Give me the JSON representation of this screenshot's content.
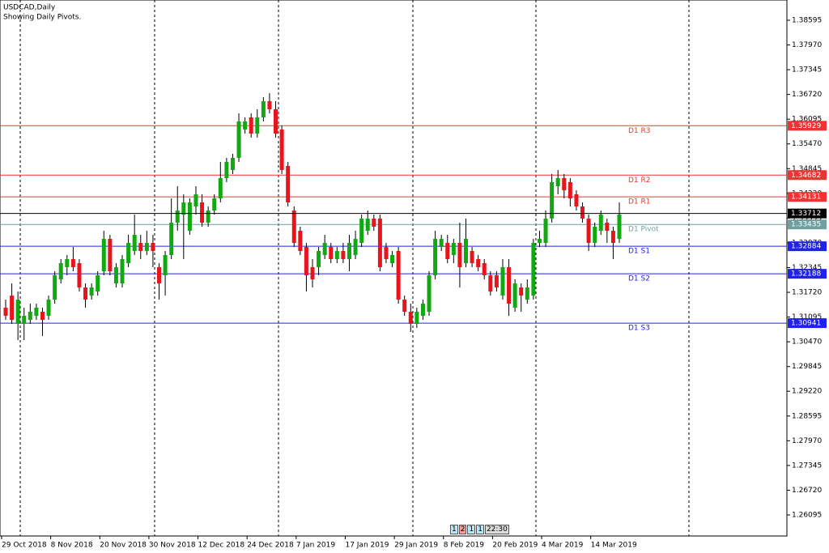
{
  "chart_data": {
    "type": "candlestick",
    "title": "USDCAD,Daily",
    "subtitle": "Showing Daily Pivots.",
    "categories": [
      "29 Oct 2018",
      null,
      null,
      null,
      null,
      null,
      null,
      null,
      "8 Nov 2018",
      null,
      null,
      null,
      null,
      null,
      null,
      null,
      "20 Nov 2018",
      null,
      null,
      null,
      null,
      null,
      null,
      null,
      "30 Nov 2018",
      null,
      null,
      null,
      null,
      null,
      null,
      null,
      "12 Dec 2018",
      null,
      null,
      null,
      null,
      null,
      null,
      null,
      "24 Dec 2018",
      null,
      null,
      null,
      null,
      null,
      null,
      null,
      "7 Jan 2019",
      null,
      null,
      null,
      null,
      null,
      null,
      null,
      "17 Jan 2019",
      null,
      null,
      null,
      null,
      null,
      null,
      null,
      "29 Jan 2019",
      null,
      null,
      null,
      null,
      null,
      null,
      null,
      "8 Feb 2019",
      null,
      null,
      null,
      null,
      null,
      null,
      null,
      "20 Feb 2019",
      null,
      null,
      null,
      null,
      null,
      null,
      null,
      "4 Mar 2019",
      null,
      null,
      null,
      null,
      null,
      null,
      null,
      "14 Mar 2019",
      null,
      null,
      null,
      null
    ],
    "open": [
      1.31332,
      1.31638,
      1.30922,
      1.30922,
      1.31025,
      1.31127,
      1.31229,
      1.31127,
      1.31536,
      1.32048,
      1.32355,
      1.32559,
      1.32457,
      1.31843,
      1.31638,
      1.31741,
      1.32252,
      1.33071,
      1.31945,
      1.31945,
      1.32457,
      1.32764,
      1.32969,
      1.32764,
      1.32969,
      1.32355,
      1.3215,
      1.32662,
      1.3348,
      1.33685,
      1.33276,
      1.3389,
      1.33992,
      1.3348,
      1.33787,
      1.34094,
      1.34606,
      1.34811,
      1.35117,
      1.35834,
      1.3614,
      1.35731,
      1.3614,
      1.3655,
      1.36345,
      1.35834,
      1.34913,
      1.33787,
      1.33276,
      1.32866,
      1.32355,
      1.32355,
      1.32662,
      1.32866,
      1.32559,
      1.32764,
      1.32559,
      1.32662,
      1.32969,
      1.33276,
      1.33583,
      1.33583,
      1.32866,
      1.32457,
      1.32764,
      1.31536,
      1.31229,
      1.30922,
      1.31127,
      1.31229,
      1.3215,
      1.32866,
      1.32969,
      1.32662,
      1.32969,
      1.32457,
      1.32764,
      1.32559,
      1.32457,
      1.3215,
      1.3215,
      1.31638,
      1.32355,
      1.31332,
      1.31843,
      1.31536,
      1.31638,
      1.32969,
      1.32969,
      1.33583,
      1.34401,
      1.34606,
      1.34504,
      1.34197,
      1.3389,
      1.33583,
      1.32969,
      1.33276,
      1.3348,
      1.33276,
      1.33071
    ],
    "high": [
      1.31536,
      1.31945,
      1.31741,
      1.31332,
      1.31434,
      1.31434,
      1.31332,
      1.31638,
      1.32252,
      1.32559,
      1.32662,
      1.32866,
      1.32559,
      1.31945,
      1.31945,
      1.32252,
      1.33276,
      1.33173,
      1.32457,
      1.32662,
      1.33173,
      1.33685,
      1.33173,
      1.33276,
      1.33173,
      1.32457,
      1.32764,
      1.34094,
      1.34401,
      1.34197,
      1.34094,
      1.34401,
      1.34197,
      1.3389,
      1.34197,
      1.35015,
      1.35117,
      1.3522,
      1.36243,
      1.3614,
      1.36243,
      1.36345,
      1.36652,
      1.36754,
      1.3655,
      1.35936,
      1.35015,
      1.3389,
      1.33378,
      1.32969,
      1.32559,
      1.32866,
      1.33173,
      1.32969,
      1.32866,
      1.32969,
      1.33173,
      1.33276,
      1.33685,
      1.33787,
      1.33685,
      1.33685,
      1.32969,
      1.32764,
      1.32866,
      1.31638,
      1.31434,
      1.31332,
      1.31536,
      1.32252,
      1.33276,
      1.33173,
      1.33173,
      1.33071,
      1.3348,
      1.33583,
      1.32866,
      1.32662,
      1.32559,
      1.32252,
      1.32252,
      1.32559,
      1.32559,
      1.32048,
      1.31945,
      1.32048,
      1.33071,
      1.33276,
      1.33787,
      1.34708,
      1.34811,
      1.34708,
      1.34606,
      1.34299,
      1.33992,
      1.33685,
      1.3348,
      1.33787,
      1.33583,
      1.33378,
      1.33992
    ],
    "low": [
      1.31025,
      1.30922,
      1.30513,
      1.30513,
      1.30922,
      1.31025,
      1.30615,
      1.31025,
      1.31434,
      1.31945,
      1.3215,
      1.32252,
      1.31741,
      1.31332,
      1.31536,
      1.31638,
      1.3215,
      1.3215,
      1.31843,
      1.31843,
      1.32355,
      1.32662,
      1.32559,
      1.32662,
      1.32355,
      1.31536,
      1.31638,
      1.32559,
      1.33276,
      1.32559,
      1.33173,
      1.33685,
      1.33378,
      1.33378,
      1.33685,
      1.33992,
      1.34504,
      1.34708,
      1.35015,
      1.35731,
      1.35629,
      1.35629,
      1.36038,
      1.36243,
      1.35629,
      1.34708,
      1.3389,
      1.32866,
      1.32662,
      1.31741,
      1.31843,
      1.3215,
      1.32559,
      1.32457,
      1.32457,
      1.32457,
      1.32252,
      1.32559,
      1.32866,
      1.33173,
      1.33276,
      1.32252,
      1.32457,
      1.32355,
      1.31434,
      1.31127,
      1.30718,
      1.3082,
      1.31025,
      1.31127,
      1.32048,
      1.32764,
      1.32457,
      1.32457,
      1.31843,
      1.32355,
      1.32355,
      1.32252,
      1.32048,
      1.31638,
      1.31741,
      1.31536,
      1.31127,
      1.31229,
      1.31229,
      1.31434,
      1.31536,
      1.32866,
      1.32866,
      1.3348,
      1.34197,
      1.34094,
      1.3389,
      1.33787,
      1.3348,
      1.32764,
      1.32866,
      1.33173,
      1.32969,
      1.32559,
      1.32969
    ],
    "close": [
      1.31127,
      1.31025,
      1.31536,
      1.31127,
      1.31229,
      1.31332,
      1.31025,
      1.31536,
      1.3215,
      1.32457,
      1.32559,
      1.32355,
      1.31843,
      1.31536,
      1.31843,
      1.3215,
      1.33071,
      1.32252,
      1.32355,
      1.32559,
      1.32969,
      1.33173,
      1.32764,
      1.32969,
      1.32764,
      1.31945,
      1.32662,
      1.3348,
      1.33787,
      1.33992,
      1.33992,
      1.34197,
      1.3348,
      1.33787,
      1.34094,
      1.34606,
      1.35015,
      1.35117,
      1.36038,
      1.36038,
      1.35731,
      1.3614,
      1.3655,
      1.36345,
      1.35731,
      1.34811,
      1.33992,
      1.32969,
      1.32764,
      1.3215,
      1.32048,
      1.32764,
      1.32969,
      1.32559,
      1.32764,
      1.32559,
      1.32969,
      1.33071,
      1.33583,
      1.33583,
      1.33378,
      1.32355,
      1.32559,
      1.32662,
      1.31536,
      1.31229,
      1.30922,
      1.31229,
      1.31434,
      1.3215,
      1.33071,
      1.33071,
      1.32559,
      1.32969,
      1.32355,
      1.33071,
      1.32457,
      1.32355,
      1.3215,
      1.31741,
      1.31843,
      1.32355,
      1.31434,
      1.31945,
      1.31638,
      1.31843,
      1.32969,
      1.33071,
      1.33583,
      1.34504,
      1.34606,
      1.34299,
      1.34094,
      1.3389,
      1.33583,
      1.32969,
      1.33378,
      1.33685,
      1.33276,
      1.32969,
      1.33685
    ],
    "up_color": "#11a811",
    "down_color": "#e8141c",
    "ylim": [
      1.25563,
      1.39106
    ],
    "yticks": [
      1.38595,
      {
        "value": 1.3797,
        "label": "1.37970"
      },
      1.37345,
      {
        "value": 1.3672,
        "label": "1.36720"
      },
      1.36095,
      {
        "value": 1.3547,
        "label": "1.35470"
      },
      1.34845,
      {
        "value": 1.3422,
        "label": "1.34220"
      },
      1.33595,
      {
        "value": 1.3297,
        "label": "1.32970"
      },
      1.32345,
      {
        "value": 1.3172,
        "label": "1.31720"
      },
      1.31095,
      {
        "value": 1.3047,
        "label": "1.30470"
      },
      1.29845,
      {
        "value": 1.2922,
        "label": "1.29220"
      },
      1.28595,
      {
        "value": 1.2797,
        "label": "1.27970"
      },
      1.27345,
      {
        "value": 1.2672,
        "label": "1.26720"
      },
      1.26095
    ],
    "levels": [
      {
        "name": "D1 R3",
        "value": 1.35929,
        "color": "#f03232"
      },
      {
        "name": "D1 R2",
        "value": 1.34682,
        "color": "#f03232"
      },
      {
        "name": "D1 R1",
        "value": 1.34131,
        "color": "#f03232"
      },
      {
        "name": "D1 Pivot",
        "value": 1.33435,
        "color": "#6f9f9f"
      },
      {
        "name": "D1 S1",
        "value": 1.32884,
        "color": "#2020f0"
      },
      {
        "name": "D1 S2",
        "value": 1.32188,
        "color": "#2020f0"
      },
      {
        "name": "D1 S3",
        "value": 1.30941,
        "color": "#2020f0"
      }
    ],
    "current_price": {
      "value": 1.33712,
      "color": "#000000"
    }
  },
  "timer": [
    "1",
    "2",
    "1",
    "1",
    "22:30"
  ]
}
